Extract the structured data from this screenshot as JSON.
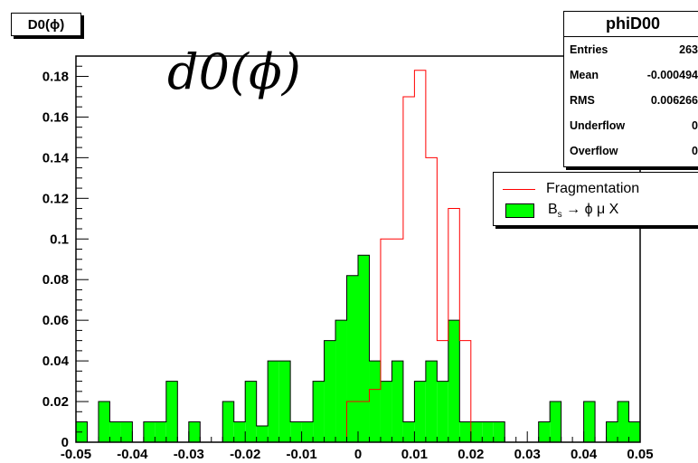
{
  "title_box": "D0(ϕ)",
  "plot_label": "d0(ϕ)",
  "stats": {
    "name": "phiD00",
    "rows": [
      {
        "label": "Entries",
        "value": "263"
      },
      {
        "label": "Mean",
        "value": "-0.000494"
      },
      {
        "label": "RMS",
        "value": "0.006266"
      },
      {
        "label": "Underflow",
        "value": "0"
      },
      {
        "label": "Overflow",
        "value": "0"
      }
    ]
  },
  "legend": {
    "fragmentation": "Fragmentation",
    "bs_prefix": "B",
    "bs_sub": "s",
    "bs_suffix": " → ϕ μ X"
  },
  "chart_data": {
    "type": "bar",
    "title": "",
    "xlabel": "",
    "ylabel": "",
    "xlim": [
      -0.05,
      0.05
    ],
    "ylim": [
      0,
      0.19
    ],
    "bin_width": 0.002,
    "x_ticks": [
      "-0.05",
      "-0.04",
      "-0.03",
      "-0.02",
      "-0.01",
      "0",
      "0.01",
      "0.02",
      "0.03",
      "0.04",
      "0.05"
    ],
    "y_ticks": [
      "0",
      "0.02",
      "0.04",
      "0.06",
      "0.08",
      "0.1",
      "0.12",
      "0.14",
      "0.16",
      "0.18"
    ],
    "grid": false,
    "series": [
      {
        "name": "Fragmentation",
        "style": "outline",
        "color": "#ff0000",
        "values": [
          0.0,
          0.0,
          0.0,
          0.0,
          0.0,
          0.0,
          0.0,
          0.0,
          0.0,
          0.0,
          0.0,
          0.0,
          0.0,
          0.0,
          0.0,
          0.0,
          0.0,
          0.0,
          0.0,
          0.0,
          0.0,
          0.0,
          0.0,
          0.0,
          0.02,
          0.02,
          0.026,
          0.1,
          0.1,
          0.17,
          0.183,
          0.14,
          0.05,
          0.115,
          0.05,
          0.0,
          0.0,
          0.0,
          0.0,
          0.0,
          0.0,
          0.0,
          0.0,
          0.0,
          0.0,
          0.0,
          0.0,
          0.0,
          0.0,
          0.0
        ]
      },
      {
        "name": "B_s → ϕ μ X",
        "style": "filled",
        "color": "#00ff00",
        "values": [
          0.01,
          0.0,
          0.02,
          0.01,
          0.01,
          0.0,
          0.01,
          0.01,
          0.03,
          0.0,
          0.01,
          0.0,
          0.0,
          0.02,
          0.01,
          0.03,
          0.008,
          0.04,
          0.04,
          0.01,
          0.01,
          0.03,
          0.05,
          0.06,
          0.082,
          0.092,
          0.04,
          0.03,
          0.04,
          0.01,
          0.03,
          0.04,
          0.03,
          0.06,
          0.01,
          0.01,
          0.01,
          0.01,
          0.0,
          0.0,
          0.0,
          0.01,
          0.02,
          0.0,
          0.0,
          0.02,
          0.0,
          0.01,
          0.02,
          0.01
        ]
      }
    ]
  }
}
